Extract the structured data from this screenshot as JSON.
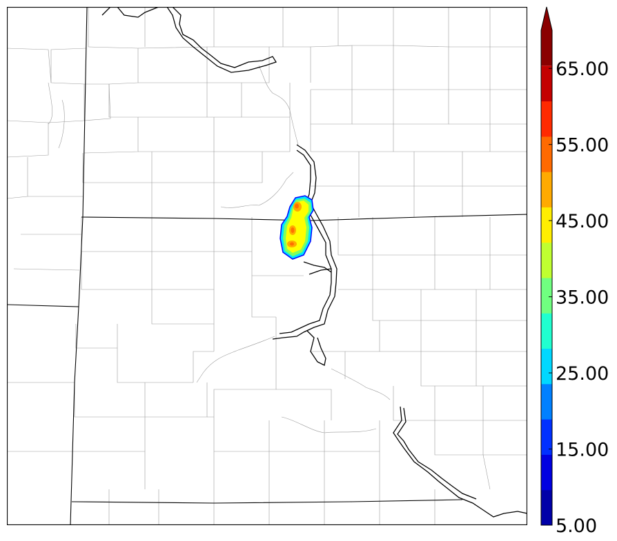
{
  "map": {
    "background": "#ffffff",
    "county_line_color": "#9a9a9a",
    "state_line_color": "#000000",
    "river_color": "#000000"
  },
  "radar_echo": {
    "max_value_estimate": 55,
    "colors_used": [
      "#0000ff",
      "#00e5ff",
      "#7fff5f",
      "#ffff00",
      "#ffaa00",
      "#ff7000"
    ]
  },
  "colorbar": {
    "min": 5,
    "max": 70,
    "step": 5,
    "extend": "max",
    "colors": [
      "#0000a8",
      "#0000e0",
      "#0030ff",
      "#0080ff",
      "#00d8ff",
      "#20ffd0",
      "#70ff80",
      "#c0ff30",
      "#ffee00",
      "#ffaa00",
      "#ff6a00",
      "#ff2a00",
      "#c40000",
      "#8a0000"
    ],
    "tick_labels": [
      "5.00",
      "15.00",
      "25.00",
      "35.00",
      "45.00",
      "55.00",
      "65.00"
    ]
  }
}
